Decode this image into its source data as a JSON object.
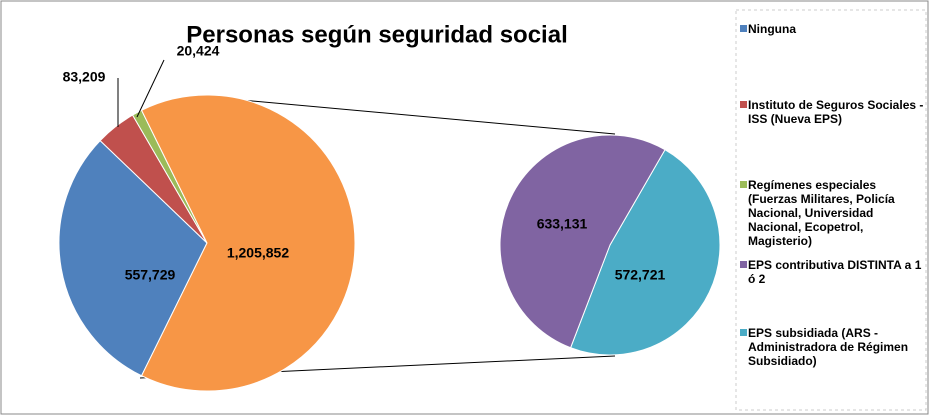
{
  "chart_data": {
    "type": "pie_of_pie",
    "title": "Personas según seguridad social",
    "main": {
      "categories": [
        "Ninguna",
        "Instituto de Seguros Sociales - ISS (Nueva EPS)",
        "Regímenes especiales (Fuerzas Militares, Policía Nacional, Universidad Nacional, Ecopetrol, Magisterio)",
        null
      ],
      "values": [
        557729,
        83209,
        20424,
        1205852
      ],
      "value_labels": [
        "557,729",
        "83,209",
        "20,424",
        "1,205,852"
      ],
      "colors": [
        "#4f81bd",
        "#c0504d",
        "#9bbb59",
        "#f79646"
      ]
    },
    "secondary": {
      "categories": [
        "EPS contributiva DISTINTA a 1 ó 2",
        "EPS subsidiada (ARS - Administradora de Régimen Subsidiado)"
      ],
      "values": [
        633131,
        572721
      ],
      "value_labels": [
        "633,131",
        "572,721"
      ],
      "colors": [
        "#8064a2",
        "#4bacc6"
      ]
    },
    "legend": "right"
  }
}
